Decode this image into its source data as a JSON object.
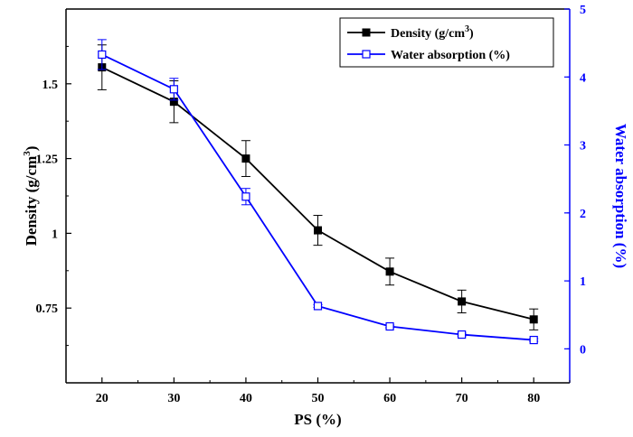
{
  "chart_data": {
    "type": "line",
    "x": [
      20,
      30,
      40,
      50,
      60,
      70,
      80
    ],
    "xlabel": "PS (%)",
    "xlim": [
      15,
      85
    ],
    "x_ticks": [
      20,
      30,
      40,
      50,
      60,
      70,
      80
    ],
    "grid": false,
    "legend_position": "top-right",
    "left_axis": {
      "label": "Density (g/cm",
      "label_superscript": "3",
      "label_suffix": ")",
      "ylim": [
        0.5,
        1.75
      ],
      "ticks": [
        0.75,
        1,
        1.25,
        1.5
      ],
      "tick_labels": [
        "0.75",
        "1",
        "1.25",
        "1.5"
      ],
      "color": "#000000"
    },
    "right_axis": {
      "label": "Water absorption  (%)",
      "ylim": [
        -0.5,
        5
      ],
      "ticks": [
        0,
        1,
        2,
        3,
        4,
        5
      ],
      "tick_labels": [
        "0",
        "1",
        "2",
        "3",
        "4",
        "5"
      ],
      "color": "#0000ff"
    },
    "series": [
      {
        "name": "Density (g/cm",
        "name_superscript": "3",
        "name_suffix": ")",
        "axis": "left",
        "color": "#000000",
        "marker": "filled-square",
        "values": [
          1.555,
          1.44,
          1.25,
          1.01,
          0.872,
          0.772,
          0.712
        ],
        "errors": [
          0.075,
          0.07,
          0.06,
          0.05,
          0.045,
          0.038,
          0.035
        ]
      },
      {
        "name": "Water absorption (%)",
        "axis": "right",
        "color": "#0000ff",
        "marker": "open-square",
        "values": [
          4.33,
          3.82,
          2.24,
          0.63,
          0.33,
          0.21,
          0.13
        ],
        "errors": [
          0.22,
          0.16,
          0.12,
          0.02,
          0.02,
          0.02,
          0.02
        ]
      }
    ]
  }
}
